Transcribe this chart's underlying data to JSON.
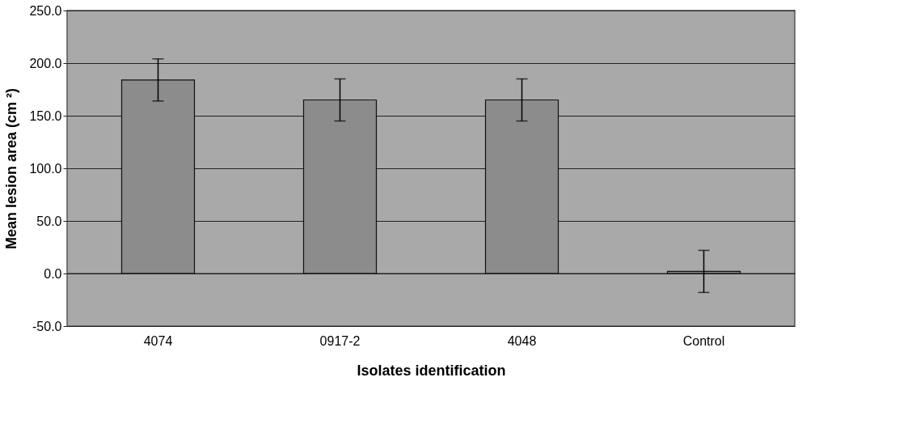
{
  "chart_data": {
    "type": "bar",
    "xlabel": "Isolates identification",
    "ylabel": "Mean lesion area (cm ²)",
    "categories": [
      "4074",
      "0917-2",
      "4048",
      "Control"
    ],
    "values": [
      184,
      165,
      165,
      2
    ],
    "errors": [
      20,
      20,
      20,
      20
    ],
    "color": "#8c8c8c",
    "ylim": [
      -50,
      250
    ],
    "yticks": [
      {
        "value": -50,
        "label": "-50.0"
      },
      {
        "value": 0,
        "label": "0.0"
      },
      {
        "value": 50,
        "label": "50.0"
      },
      {
        "value": 100,
        "label": "100.0"
      },
      {
        "value": 150,
        "label": "150.0"
      },
      {
        "value": 200,
        "label": "200.0"
      },
      {
        "value": 250,
        "label": "250.0"
      }
    ],
    "grid": "y"
  }
}
